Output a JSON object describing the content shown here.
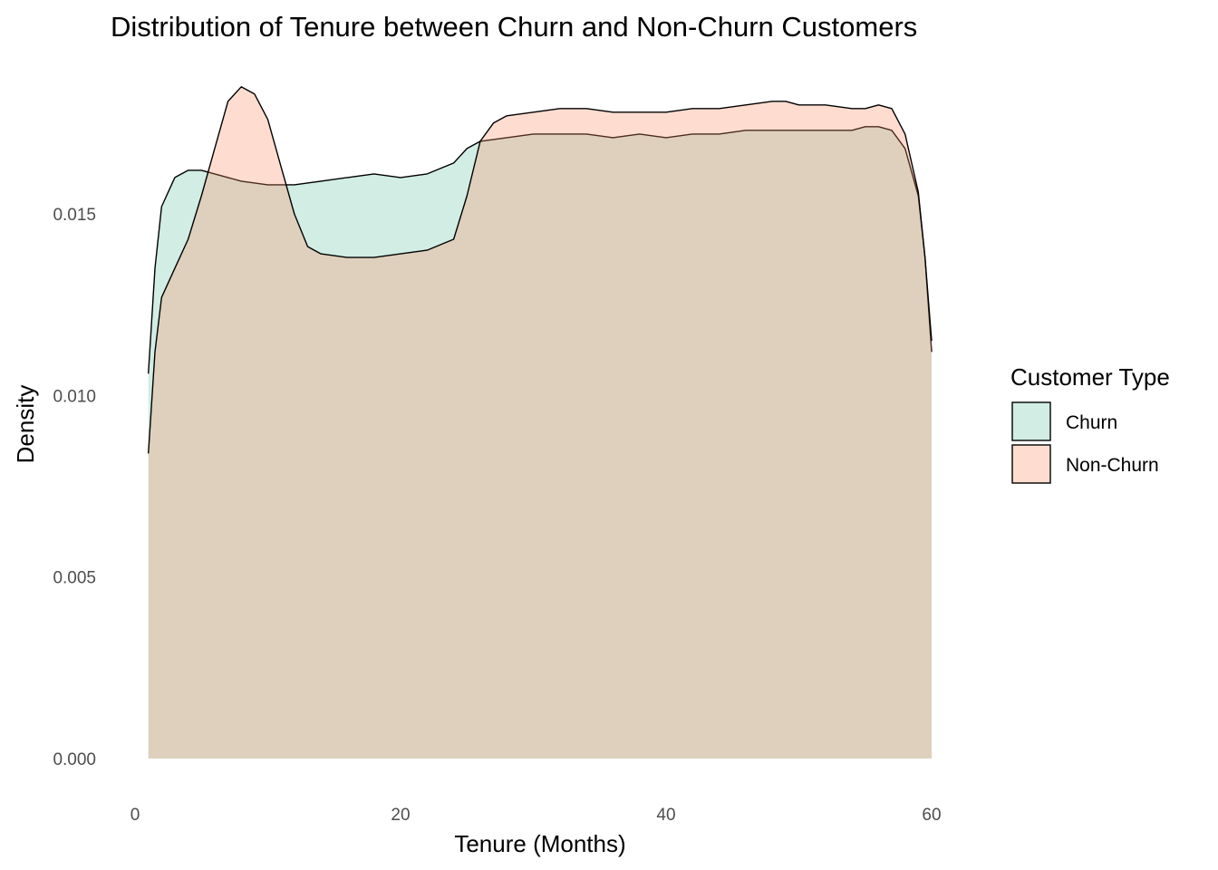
{
  "chart_data": {
    "type": "area",
    "title": "Distribution of Tenure between Churn and Non-Churn Customers",
    "xlabel": "Tenure (Months)",
    "ylabel": "Density",
    "xlim": [
      0,
      60
    ],
    "ylim": [
      0,
      0.0185
    ],
    "xticks": [
      0,
      20,
      40,
      60
    ],
    "yticks": [
      0.0,
      0.005,
      0.01,
      0.015
    ],
    "xtick_labels": [
      "0",
      "20",
      "40",
      "60"
    ],
    "ytick_labels": [
      "0.000",
      "0.005",
      "0.010",
      "0.015"
    ],
    "grid": false,
    "legend": {
      "title": "Customer Type",
      "placement": "right",
      "entries": [
        "Churn",
        "Non-Churn"
      ]
    },
    "series": [
      {
        "name": "Churn",
        "color": "#66c2a5",
        "opacity": 0.3,
        "x": [
          1,
          1.5,
          2,
          3,
          4,
          5,
          6,
          8,
          10,
          12,
          14,
          16,
          18,
          20,
          22,
          24,
          25,
          26,
          28,
          30,
          32,
          34,
          36,
          38,
          40,
          42,
          44,
          46,
          48,
          50,
          52,
          54,
          55,
          56,
          57,
          58,
          59,
          59.5,
          60
        ],
        "y": [
          0.0106,
          0.0135,
          0.0152,
          0.016,
          0.0162,
          0.0162,
          0.0161,
          0.0159,
          0.0158,
          0.0158,
          0.0159,
          0.016,
          0.0161,
          0.016,
          0.0161,
          0.0164,
          0.0168,
          0.017,
          0.0171,
          0.0172,
          0.0172,
          0.0172,
          0.0171,
          0.0172,
          0.0171,
          0.0172,
          0.0172,
          0.0173,
          0.0173,
          0.0173,
          0.0173,
          0.0173,
          0.0174,
          0.0174,
          0.0173,
          0.0168,
          0.0155,
          0.0138,
          0.0112
        ]
      },
      {
        "name": "Non-Churn",
        "color": "#fc8d62",
        "opacity": 0.3,
        "x": [
          1,
          1.5,
          2,
          3,
          4,
          5,
          6,
          7,
          8,
          9,
          10,
          11,
          12,
          13,
          14,
          16,
          18,
          20,
          22,
          24,
          25,
          26,
          27,
          28,
          30,
          32,
          34,
          36,
          38,
          40,
          42,
          44,
          46,
          48,
          49,
          50,
          52,
          54,
          55,
          56,
          57,
          58,
          59,
          59.5,
          60
        ],
        "y": [
          0.0084,
          0.0112,
          0.0127,
          0.0135,
          0.0143,
          0.0155,
          0.0168,
          0.0181,
          0.0185,
          0.0183,
          0.0176,
          0.0163,
          0.015,
          0.0141,
          0.0139,
          0.0138,
          0.0138,
          0.0139,
          0.014,
          0.0143,
          0.0155,
          0.017,
          0.0175,
          0.0177,
          0.0178,
          0.0179,
          0.0179,
          0.0178,
          0.0178,
          0.0178,
          0.0179,
          0.0179,
          0.018,
          0.0181,
          0.0181,
          0.018,
          0.018,
          0.0179,
          0.0179,
          0.018,
          0.0179,
          0.0172,
          0.0156,
          0.0138,
          0.0115
        ]
      }
    ]
  }
}
